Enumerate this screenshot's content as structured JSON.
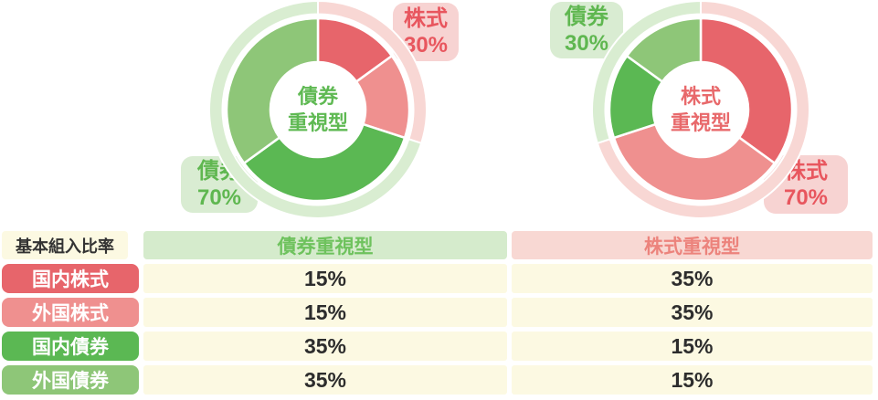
{
  "palette": {
    "domestic_stock": "#e7656b",
    "foreign_stock": "#ef908f",
    "domestic_bond": "#5bb853",
    "foreign_bond": "#8ec678",
    "pale_pink": "#f8d7d4",
    "pale_green": "#d9edd1",
    "pale_yellow": "#fcf9e2",
    "value_text": "#2d2d2d",
    "center_green_text": "#5fb953",
    "center_red_text": "#e8696b"
  },
  "charts": [
    {
      "name": "bond-focused-donut",
      "center": [
        "債券",
        "重視型"
      ],
      "center_color_key": "center_green_text",
      "segments": [
        {
          "label": "国内株式",
          "value": 15,
          "color": "#e7656b"
        },
        {
          "label": "外国株式",
          "value": 15,
          "color": "#ef908f"
        },
        {
          "label": "国内債券",
          "value": 35,
          "color": "#5bb853"
        },
        {
          "label": "外国債券",
          "value": 35,
          "color": "#8ec678"
        }
      ],
      "outer_ring": [
        {
          "group": "株式",
          "value": 30,
          "color": "#f8d7d4"
        },
        {
          "group": "債券",
          "value": 70,
          "color": "#d9edd1"
        }
      ],
      "callouts": [
        {
          "name": "stock-30",
          "lines": [
            "株式",
            "30%"
          ],
          "bg": "#f7d3d2",
          "color": "#e8565e"
        },
        {
          "name": "bond-70",
          "lines": [
            "債券",
            "70%"
          ],
          "bg": "#d9ecd2",
          "color": "#5fb750"
        }
      ]
    },
    {
      "name": "stock-focused-donut",
      "center": [
        "株式",
        "重視型"
      ],
      "center_color_key": "center_red_text",
      "segments": [
        {
          "label": "国内株式",
          "value": 35,
          "color": "#e7656b"
        },
        {
          "label": "外国株式",
          "value": 35,
          "color": "#ef908f"
        },
        {
          "label": "国内債券",
          "value": 15,
          "color": "#5bb853"
        },
        {
          "label": "外国債券",
          "value": 15,
          "color": "#8ec678"
        }
      ],
      "outer_ring": [
        {
          "group": "株式",
          "value": 70,
          "color": "#f8d7d4"
        },
        {
          "group": "債券",
          "value": 30,
          "color": "#d9edd1"
        }
      ],
      "callouts": [
        {
          "name": "bond-30",
          "lines": [
            "債券",
            "30%"
          ],
          "bg": "#d9ecd2",
          "color": "#5fb750"
        },
        {
          "name": "stock-70",
          "lines": [
            "株式",
            "70%"
          ],
          "bg": "#f7d3d2",
          "color": "#e8565e"
        }
      ]
    }
  ],
  "table": {
    "corner": "基本組入比率",
    "corner_bg": "#fcf9e2",
    "columns": [
      {
        "label": "債券重視型",
        "bg": "#d5ebcc",
        "color": "#6ec25d"
      },
      {
        "label": "株式重視型",
        "bg": "#f8d8d3",
        "color": "#ec837c"
      }
    ],
    "value_bg": "#fcf9e2",
    "rows": [
      {
        "label": "国内株式",
        "bg": "#e7656b",
        "values": [
          "15%",
          "35%"
        ]
      },
      {
        "label": "外国株式",
        "bg": "#ef908f",
        "values": [
          "15%",
          "35%"
        ]
      },
      {
        "label": "国内債券",
        "bg": "#5bb853",
        "values": [
          "35%",
          "15%"
        ]
      },
      {
        "label": "外国債券",
        "bg": "#8ec678",
        "values": [
          "35%",
          "15%"
        ]
      }
    ]
  },
  "chart_data": [
    {
      "type": "pie",
      "title": "債券重視型",
      "labels": [
        "国内株式",
        "外国株式",
        "国内債券",
        "外国債券"
      ],
      "values": [
        15,
        15,
        35,
        35
      ],
      "colors": [
        "#e7656b",
        "#ef908f",
        "#5bb853",
        "#8ec678"
      ],
      "annotations": [
        "株式 30%",
        "債券 70%"
      ],
      "layout": "donut, segments clockwise from top, pale outer ring grouped 30% pink / 70% green"
    },
    {
      "type": "pie",
      "title": "株式重視型",
      "labels": [
        "国内株式",
        "外国株式",
        "国内債券",
        "外国債券"
      ],
      "values": [
        35,
        35,
        15,
        15
      ],
      "colors": [
        "#e7656b",
        "#ef908f",
        "#5bb853",
        "#8ec678"
      ],
      "annotations": [
        "債券 30%",
        "株式 70%"
      ],
      "layout": "donut, segments clockwise from top, pale outer ring grouped 70% pink / 30% green"
    },
    {
      "type": "table",
      "title": "基本組入比率",
      "columns": [
        "基本組入比率",
        "債券重視型",
        "株式重視型"
      ],
      "rows": [
        [
          "国内株式",
          "15%",
          "35%"
        ],
        [
          "外国株式",
          "15%",
          "35%"
        ],
        [
          "国内債券",
          "35%",
          "15%"
        ],
        [
          "外国債券",
          "35%",
          "15%"
        ]
      ]
    }
  ]
}
